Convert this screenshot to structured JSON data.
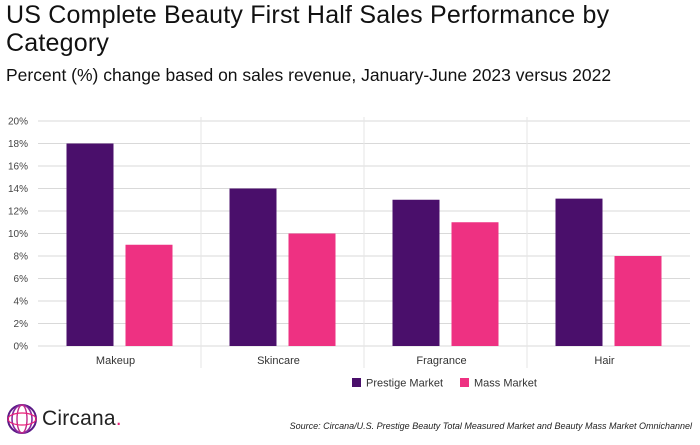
{
  "title": "US Complete Beauty First Half Sales Performance by Category",
  "subtitle": "Percent (%) change based on sales revenue, January-June 2023 versus 2022",
  "source": "Source: Circana/U.S. Prestige Beauty Total Measured Market and Beauty Mass Market Omnichannel",
  "logo": {
    "name": "Circana",
    "dot": ".",
    "icon": "circana-swirl-icon"
  },
  "colors": {
    "prestige": "#4a0f6b",
    "mass": "#ee3182",
    "grid": "#d9d9d9",
    "separator": "#e6e6e6"
  },
  "chart_data": {
    "type": "bar",
    "categories": [
      "Makeup",
      "Skincare",
      "Fragrance",
      "Hair"
    ],
    "series": [
      {
        "name": "Prestige Market",
        "values": [
          18,
          14,
          13,
          13.1
        ]
      },
      {
        "name": "Mass Market",
        "values": [
          9,
          10,
          11,
          8
        ]
      }
    ],
    "ylim": [
      0,
      20
    ],
    "yticks": [
      0,
      2,
      4,
      6,
      8,
      10,
      12,
      14,
      16,
      18,
      20
    ],
    "ytick_format": "{v}%",
    "grid": true,
    "legend_position": "bottom-right"
  }
}
